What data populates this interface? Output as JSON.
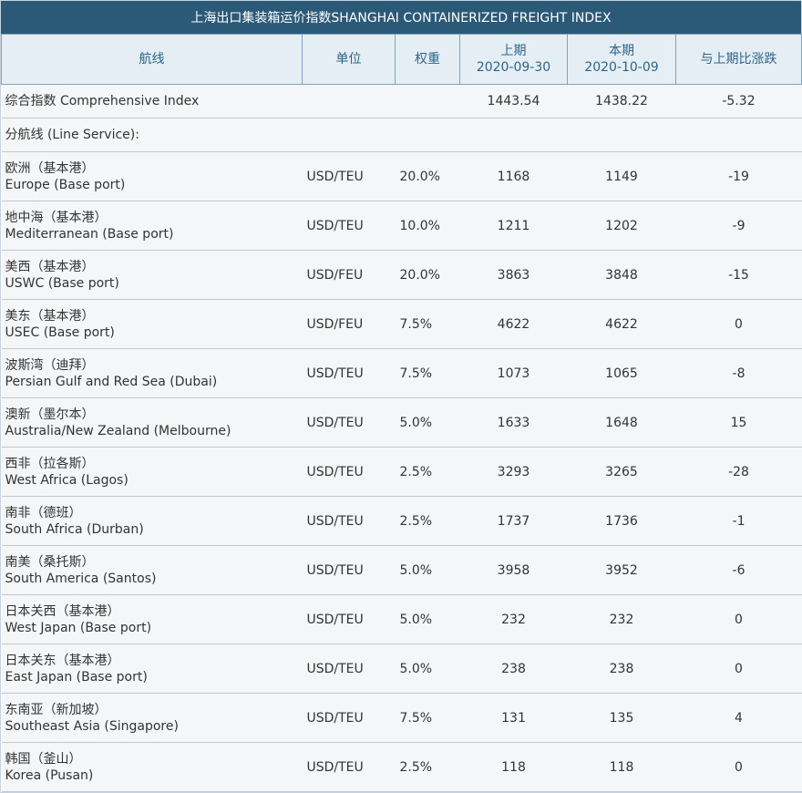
{
  "title": "上海出口集装箱运价指数SHANGHAI CONTAINERIZED FREIGHT INDEX",
  "headers": {
    "route": "航线",
    "unit": "单位",
    "weight": "权重",
    "prev_label": "上期",
    "prev_date": "2020-09-30",
    "curr_label": "本期",
    "curr_date": "2020-10-09",
    "change": "与上期比涨跌"
  },
  "composite": {
    "label": "综合指数 Comprehensive Index",
    "prev": "1443.54",
    "curr": "1438.22",
    "change": "-5.32"
  },
  "line_service_label": "分航线 (Line Service):",
  "routes": [
    {
      "zh": "欧洲（基本港）",
      "en": "Europe (Base port)",
      "unit": "USD/TEU",
      "weight": "20.0%",
      "prev": "1168",
      "curr": "1149",
      "change": "-19"
    },
    {
      "zh": "地中海（基本港）",
      "en": "Mediterranean (Base port)",
      "unit": "USD/TEU",
      "weight": "10.0%",
      "prev": "1211",
      "curr": "1202",
      "change": "-9"
    },
    {
      "zh": "美西（基本港）",
      "en": "USWC (Base port)",
      "unit": "USD/FEU",
      "weight": "20.0%",
      "prev": "3863",
      "curr": "3848",
      "change": "-15"
    },
    {
      "zh": "美东（基本港）",
      "en": "USEC (Base port)",
      "unit": "USD/FEU",
      "weight": "7.5%",
      "prev": "4622",
      "curr": "4622",
      "change": "0"
    },
    {
      "zh": "波斯湾（迪拜）",
      "en": "Persian Gulf and Red Sea (Dubai)",
      "unit": "USD/TEU",
      "weight": "7.5%",
      "prev": "1073",
      "curr": "1065",
      "change": "-8"
    },
    {
      "zh": "澳新（墨尔本）",
      "en": "Australia/New Zealand (Melbourne)",
      "unit": "USD/TEU",
      "weight": "5.0%",
      "prev": "1633",
      "curr": "1648",
      "change": "15"
    },
    {
      "zh": "西非（拉各斯）",
      "en": "West Africa (Lagos)",
      "unit": "USD/TEU",
      "weight": "2.5%",
      "prev": "3293",
      "curr": "3265",
      "change": "-28"
    },
    {
      "zh": "南非（德班）",
      "en": "South Africa (Durban)",
      "unit": "USD/TEU",
      "weight": "2.5%",
      "prev": "1737",
      "curr": "1736",
      "change": "-1"
    },
    {
      "zh": "南美（桑托斯）",
      "en": "South America (Santos)",
      "unit": "USD/TEU",
      "weight": "5.0%",
      "prev": "3958",
      "curr": "3952",
      "change": "-6"
    },
    {
      "zh": "日本关西（基本港）",
      "en": "West Japan (Base port)",
      "unit": "USD/TEU",
      "weight": "5.0%",
      "prev": "232",
      "curr": "232",
      "change": "0"
    },
    {
      "zh": "日本关东（基本港）",
      "en": "East Japan (Base port)",
      "unit": "USD/TEU",
      "weight": "5.0%",
      "prev": "238",
      "curr": "238",
      "change": "0"
    },
    {
      "zh": "东南亚（新加坡）",
      "en": "Southeast Asia (Singapore)",
      "unit": "USD/TEU",
      "weight": "7.5%",
      "prev": "131",
      "curr": "135",
      "change": "4"
    },
    {
      "zh": "韩国（釜山）",
      "en": "Korea (Pusan)",
      "unit": "USD/TEU",
      "weight": "2.5%",
      "prev": "118",
      "curr": "118",
      "change": "0"
    }
  ]
}
